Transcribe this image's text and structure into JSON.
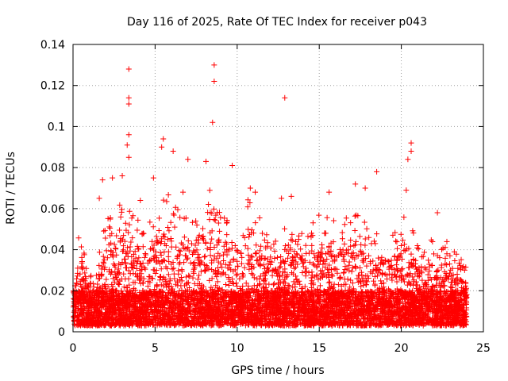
{
  "chart_data": {
    "type": "scatter",
    "title": "Day 116 of 2025, Rate Of TEC Index for receiver p043",
    "xlabel": "GPS time / hours",
    "ylabel": "ROTI / TECUs",
    "xlim": [
      0,
      25
    ],
    "ylim": [
      0,
      0.14
    ],
    "xticks": [
      0,
      5,
      10,
      15,
      20,
      25
    ],
    "yticks": [
      0,
      0.02,
      0.04,
      0.06,
      0.08,
      0.1,
      0.12,
      0.14
    ],
    "grid": true,
    "marker": "plus",
    "color": "#ff0000",
    "data_x_range": [
      0,
      24
    ],
    "baseline_band": [
      0.003,
      0.02
    ],
    "outliers": [
      {
        "x": 3.4,
        "y": 0.128
      },
      {
        "x": 3.4,
        "y": 0.114
      },
      {
        "x": 3.4,
        "y": 0.111
      },
      {
        "x": 3.4,
        "y": 0.096
      },
      {
        "x": 3.3,
        "y": 0.091
      },
      {
        "x": 3.4,
        "y": 0.085
      },
      {
        "x": 8.6,
        "y": 0.13
      },
      {
        "x": 8.6,
        "y": 0.122
      },
      {
        "x": 8.5,
        "y": 0.102
      },
      {
        "x": 12.9,
        "y": 0.114
      },
      {
        "x": 5.5,
        "y": 0.094
      },
      {
        "x": 5.4,
        "y": 0.09
      },
      {
        "x": 6.1,
        "y": 0.088
      },
      {
        "x": 20.6,
        "y": 0.092
      },
      {
        "x": 20.6,
        "y": 0.088
      },
      {
        "x": 20.4,
        "y": 0.084
      },
      {
        "x": 9.7,
        "y": 0.081
      },
      {
        "x": 18.5,
        "y": 0.078
      },
      {
        "x": 8.1,
        "y": 0.083
      },
      {
        "x": 7.0,
        "y": 0.084
      },
      {
        "x": 3.0,
        "y": 0.076
      },
      {
        "x": 1.8,
        "y": 0.074
      },
      {
        "x": 2.4,
        "y": 0.075
      },
      {
        "x": 4.9,
        "y": 0.075
      },
      {
        "x": 10.8,
        "y": 0.07
      },
      {
        "x": 11.1,
        "y": 0.068
      },
      {
        "x": 13.3,
        "y": 0.066
      },
      {
        "x": 15.6,
        "y": 0.068
      },
      {
        "x": 17.2,
        "y": 0.072
      },
      {
        "x": 17.8,
        "y": 0.07
      },
      {
        "x": 20.3,
        "y": 0.069
      },
      {
        "x": 12.7,
        "y": 0.065
      },
      {
        "x": 22.2,
        "y": 0.058
      },
      {
        "x": 1.6,
        "y": 0.065
      },
      {
        "x": 4.1,
        "y": 0.064
      },
      {
        "x": 6.7,
        "y": 0.068
      }
    ],
    "activity_envelope": [
      {
        "x": 0.0,
        "y": 0.02
      },
      {
        "x": 0.4,
        "y": 0.052
      },
      {
        "x": 0.8,
        "y": 0.036
      },
      {
        "x": 1.3,
        "y": 0.022
      },
      {
        "x": 1.8,
        "y": 0.05
      },
      {
        "x": 2.3,
        "y": 0.06
      },
      {
        "x": 2.8,
        "y": 0.065
      },
      {
        "x": 3.3,
        "y": 0.075
      },
      {
        "x": 3.8,
        "y": 0.058
      },
      {
        "x": 4.3,
        "y": 0.05
      },
      {
        "x": 4.8,
        "y": 0.055
      },
      {
        "x": 5.3,
        "y": 0.065
      },
      {
        "x": 5.8,
        "y": 0.068
      },
      {
        "x": 6.3,
        "y": 0.06
      },
      {
        "x": 6.8,
        "y": 0.062
      },
      {
        "x": 7.3,
        "y": 0.058
      },
      {
        "x": 7.8,
        "y": 0.062
      },
      {
        "x": 8.3,
        "y": 0.07
      },
      {
        "x": 8.8,
        "y": 0.058
      },
      {
        "x": 9.3,
        "y": 0.06
      },
      {
        "x": 9.8,
        "y": 0.055
      },
      {
        "x": 10.3,
        "y": 0.058
      },
      {
        "x": 10.8,
        "y": 0.068
      },
      {
        "x": 11.3,
        "y": 0.06
      },
      {
        "x": 11.8,
        "y": 0.05
      },
      {
        "x": 12.3,
        "y": 0.048
      },
      {
        "x": 12.8,
        "y": 0.05
      },
      {
        "x": 13.3,
        "y": 0.062
      },
      {
        "x": 13.8,
        "y": 0.048
      },
      {
        "x": 14.3,
        "y": 0.05
      },
      {
        "x": 14.8,
        "y": 0.058
      },
      {
        "x": 15.3,
        "y": 0.06
      },
      {
        "x": 15.8,
        "y": 0.055
      },
      {
        "x": 16.3,
        "y": 0.052
      },
      {
        "x": 16.8,
        "y": 0.058
      },
      {
        "x": 17.3,
        "y": 0.06
      },
      {
        "x": 17.8,
        "y": 0.055
      },
      {
        "x": 18.3,
        "y": 0.05
      },
      {
        "x": 18.8,
        "y": 0.045
      },
      {
        "x": 19.3,
        "y": 0.048
      },
      {
        "x": 19.8,
        "y": 0.05
      },
      {
        "x": 20.3,
        "y": 0.06
      },
      {
        "x": 20.8,
        "y": 0.05
      },
      {
        "x": 21.3,
        "y": 0.042
      },
      {
        "x": 21.8,
        "y": 0.045
      },
      {
        "x": 22.3,
        "y": 0.04
      },
      {
        "x": 22.8,
        "y": 0.045
      },
      {
        "x": 23.3,
        "y": 0.04
      },
      {
        "x": 23.8,
        "y": 0.035
      },
      {
        "x": 24.0,
        "y": 0.03
      }
    ]
  }
}
